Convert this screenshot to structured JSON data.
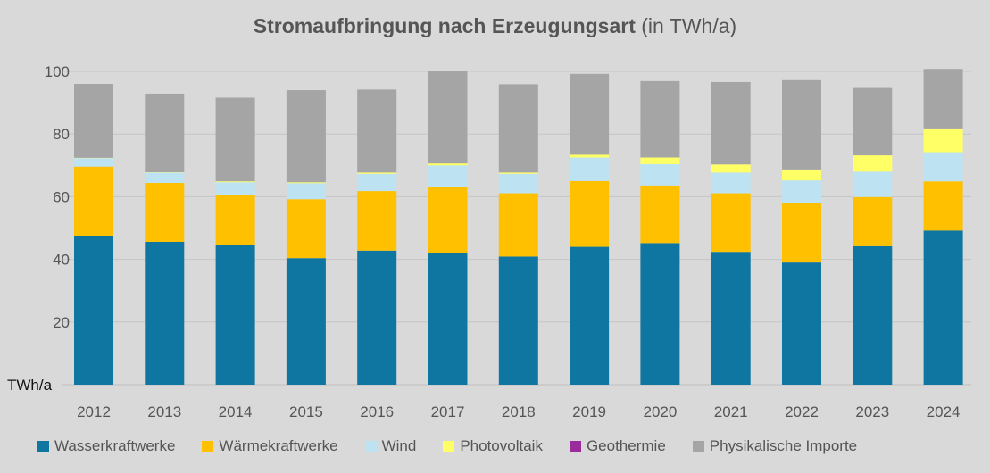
{
  "chart_data": {
    "type": "bar",
    "stacked": true,
    "title_bold": "Stromaufbringung nach Erzeugungsart",
    "title_rest": "(in TWh/a)",
    "ylabel": "TWh/a",
    "ylim": [
      0,
      100
    ],
    "yticks": [
      20,
      40,
      60,
      80,
      100
    ],
    "grid": true,
    "legend_position": "bottom",
    "categories": [
      "2012",
      "2013",
      "2014",
      "2015",
      "2016",
      "2017",
      "2018",
      "2019",
      "2020",
      "2021",
      "2022",
      "2023",
      "2024"
    ],
    "series": [
      {
        "name": "Wasserkraftwerke",
        "color": "#0e76a0",
        "values": [
          47.5,
          45.6,
          44.6,
          40.4,
          42.8,
          41.9,
          40.9,
          44.0,
          45.2,
          42.4,
          39.0,
          44.2,
          49.2
        ]
      },
      {
        "name": "Wärmekraftwerke",
        "color": "#ffc000",
        "values": [
          22.1,
          18.8,
          15.9,
          18.8,
          19.0,
          21.3,
          20.2,
          21.0,
          18.4,
          18.7,
          18.9,
          15.7,
          15.7
        ]
      },
      {
        "name": "Wind",
        "color": "#bde3f2",
        "values": [
          2.7,
          3.3,
          4.1,
          5.1,
          5.5,
          6.8,
          6.2,
          7.5,
          6.8,
          6.6,
          7.3,
          8.1,
          9.3
        ]
      },
      {
        "name": "Photovoltaik",
        "color": "#ffff66",
        "values": [
          0.1,
          0.1,
          0.3,
          0.3,
          0.4,
          0.6,
          0.4,
          0.9,
          2.1,
          2.6,
          3.5,
          5.2,
          7.6
        ]
      },
      {
        "name": "Geothermie",
        "color": "#9b2c9b",
        "values": [
          0,
          0,
          0,
          0,
          0,
          0,
          0,
          0,
          0,
          0,
          0,
          0,
          0
        ]
      },
      {
        "name": "Physikalische Importe",
        "color": "#a5a5a5",
        "values": [
          23.6,
          25.1,
          26.7,
          29.4,
          26.5,
          29.4,
          28.2,
          25.8,
          24.4,
          26.3,
          28.5,
          21.5,
          19.0
        ]
      }
    ]
  }
}
